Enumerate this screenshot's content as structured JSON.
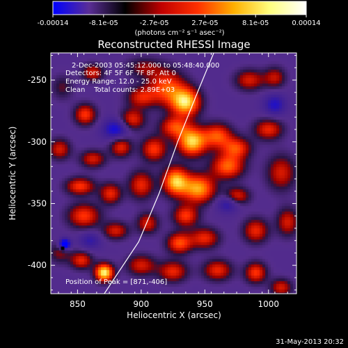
{
  "chart_data": {
    "type": "heatmap",
    "title": "Reconstructed RHESSI Image",
    "xlabel": "Heliocentric X (arcsec)",
    "ylabel": "Heliocentric Y (arcsec)",
    "xlim": [
      829,
      1022
    ],
    "ylim": [
      -423,
      -228
    ],
    "x_ticks": [
      850,
      900,
      950,
      1000
    ],
    "y_ticks": [
      -250,
      -300,
      -350,
      -400
    ],
    "grid": false,
    "colorbar": {
      "min": -0.00014,
      "max": 0.00014,
      "ticks": [
        "-0.00014",
        "-8.1e-05",
        "-2.7e-05",
        "2.7e-05",
        "8.1e-05",
        "0.00014"
      ],
      "unit_label": "(photons cm⁻² s⁻¹ asec⁻²)",
      "colors": [
        "#0000ff",
        "#5a2e96",
        "#000000",
        "#c00000",
        "#ff3000",
        "#ffb000",
        "#ffff80",
        "#ffffff"
      ]
    },
    "annotations": [
      "2-Dec-2003 05:45:12.000 to 05:48:40.000",
      "Detectors: 4F 5F 6F 7F 8F, Att 0",
      "Energy Range: 12.0 - 25.0 keV",
      "Clean    Total counts: 2.89E+03"
    ],
    "peak_label": "Position of Peak = [871,-406]",
    "limb_curve": [
      [
        871,
        -423
      ],
      [
        898,
        -381
      ],
      [
        914,
        -342
      ],
      [
        929,
        -299
      ],
      [
        945,
        -258
      ],
      [
        957,
        -228
      ]
    ],
    "blobs": [
      {
        "x": 838,
        "y": -256,
        "sx": 6,
        "sy": 7,
        "v": 0.25
      },
      {
        "x": 862,
        "y": -244,
        "sx": 6,
        "sy": 5,
        "v": 0.45
      },
      {
        "x": 856,
        "y": -278,
        "sx": 6,
        "sy": 6,
        "v": 0.55
      },
      {
        "x": 893,
        "y": -282,
        "sx": 7,
        "sy": 6,
        "v": 0.5
      },
      {
        "x": 900,
        "y": -264,
        "sx": 8,
        "sy": 6,
        "v": 0.45
      },
      {
        "x": 920,
        "y": -256,
        "sx": 10,
        "sy": 10,
        "v": 0.6
      },
      {
        "x": 935,
        "y": -268,
        "sx": 8,
        "sy": 8,
        "v": 0.9
      },
      {
        "x": 926,
        "y": -288,
        "sx": 8,
        "sy": 6,
        "v": 0.55
      },
      {
        "x": 884,
        "y": -304,
        "sx": 6,
        "sy": 6,
        "v": 0.5
      },
      {
        "x": 910,
        "y": -306,
        "sx": 7,
        "sy": 7,
        "v": 0.55
      },
      {
        "x": 940,
        "y": -300,
        "sx": 8,
        "sy": 8,
        "v": 0.9
      },
      {
        "x": 960,
        "y": -295,
        "sx": 8,
        "sy": 7,
        "v": 0.6
      },
      {
        "x": 975,
        "y": -305,
        "sx": 8,
        "sy": 6,
        "v": 0.55
      },
      {
        "x": 985,
        "y": -250,
        "sx": 8,
        "sy": 6,
        "v": 0.45
      },
      {
        "x": 1005,
        "y": -248,
        "sx": 6,
        "sy": 6,
        "v": 0.4
      },
      {
        "x": 1000,
        "y": -290,
        "sx": 8,
        "sy": 6,
        "v": 0.5
      },
      {
        "x": 862,
        "y": -314,
        "sx": 7,
        "sy": 5,
        "v": 0.45
      },
      {
        "x": 836,
        "y": -306,
        "sx": 6,
        "sy": 6,
        "v": 0.45
      },
      {
        "x": 852,
        "y": -336,
        "sx": 8,
        "sy": 5,
        "v": 0.55
      },
      {
        "x": 876,
        "y": -342,
        "sx": 6,
        "sy": 6,
        "v": 0.5
      },
      {
        "x": 900,
        "y": -335,
        "sx": 7,
        "sy": 8,
        "v": 0.5
      },
      {
        "x": 927,
        "y": -332,
        "sx": 7,
        "sy": 8,
        "v": 0.85
      },
      {
        "x": 945,
        "y": -338,
        "sx": 9,
        "sy": 8,
        "v": 0.8
      },
      {
        "x": 968,
        "y": -320,
        "sx": 9,
        "sy": 7,
        "v": 0.65
      },
      {
        "x": 975,
        "y": -344,
        "sx": 7,
        "sy": 5,
        "v": 0.5
      },
      {
        "x": 1010,
        "y": -325,
        "sx": 8,
        "sy": 10,
        "v": 0.45
      },
      {
        "x": 855,
        "y": -360,
        "sx": 9,
        "sy": 7,
        "v": 0.55
      },
      {
        "x": 880,
        "y": -372,
        "sx": 7,
        "sy": 5,
        "v": 0.45
      },
      {
        "x": 905,
        "y": -366,
        "sx": 6,
        "sy": 6,
        "v": 0.45
      },
      {
        "x": 935,
        "y": -360,
        "sx": 7,
        "sy": 6,
        "v": 0.55
      },
      {
        "x": 930,
        "y": -382,
        "sx": 7,
        "sy": 6,
        "v": 0.6
      },
      {
        "x": 950,
        "y": -378,
        "sx": 8,
        "sy": 6,
        "v": 0.5
      },
      {
        "x": 990,
        "y": -372,
        "sx": 7,
        "sy": 7,
        "v": 0.5
      },
      {
        "x": 1015,
        "y": -365,
        "sx": 6,
        "sy": 8,
        "v": 0.45
      },
      {
        "x": 836,
        "y": -390,
        "sx": 6,
        "sy": 6,
        "v": 0.3
      },
      {
        "x": 853,
        "y": -396,
        "sx": 6,
        "sy": 5,
        "v": 0.5
      },
      {
        "x": 871,
        "y": -406,
        "sx": 5,
        "sy": 5,
        "v": 1.0
      },
      {
        "x": 900,
        "y": -400,
        "sx": 8,
        "sy": 6,
        "v": 0.45
      },
      {
        "x": 925,
        "y": -405,
        "sx": 8,
        "sy": 6,
        "v": 0.5
      },
      {
        "x": 960,
        "y": -404,
        "sx": 8,
        "sy": 6,
        "v": 0.5
      },
      {
        "x": 990,
        "y": -406,
        "sx": 6,
        "sy": 6,
        "v": 0.55
      },
      {
        "x": 1010,
        "y": -418,
        "sx": 6,
        "sy": 5,
        "v": 0.45
      },
      {
        "x": 902,
        "y": -240,
        "sx": 10,
        "sy": 6,
        "v": 0.3
      },
      {
        "x": 840,
        "y": -383,
        "sx": 3,
        "sy": 3,
        "v": -0.9
      },
      {
        "x": 968,
        "y": -350,
        "sx": 6,
        "sy": 5,
        "v": -0.4
      },
      {
        "x": 880,
        "y": -290,
        "sx": 7,
        "sy": 6,
        "v": -0.5
      },
      {
        "x": 1005,
        "y": -270,
        "sx": 6,
        "sy": 6,
        "v": -0.4
      },
      {
        "x": 860,
        "y": -380,
        "sx": 6,
        "sy": 5,
        "v": -0.3
      }
    ]
  },
  "footer": {
    "date": "31-May-2013 20:32"
  }
}
